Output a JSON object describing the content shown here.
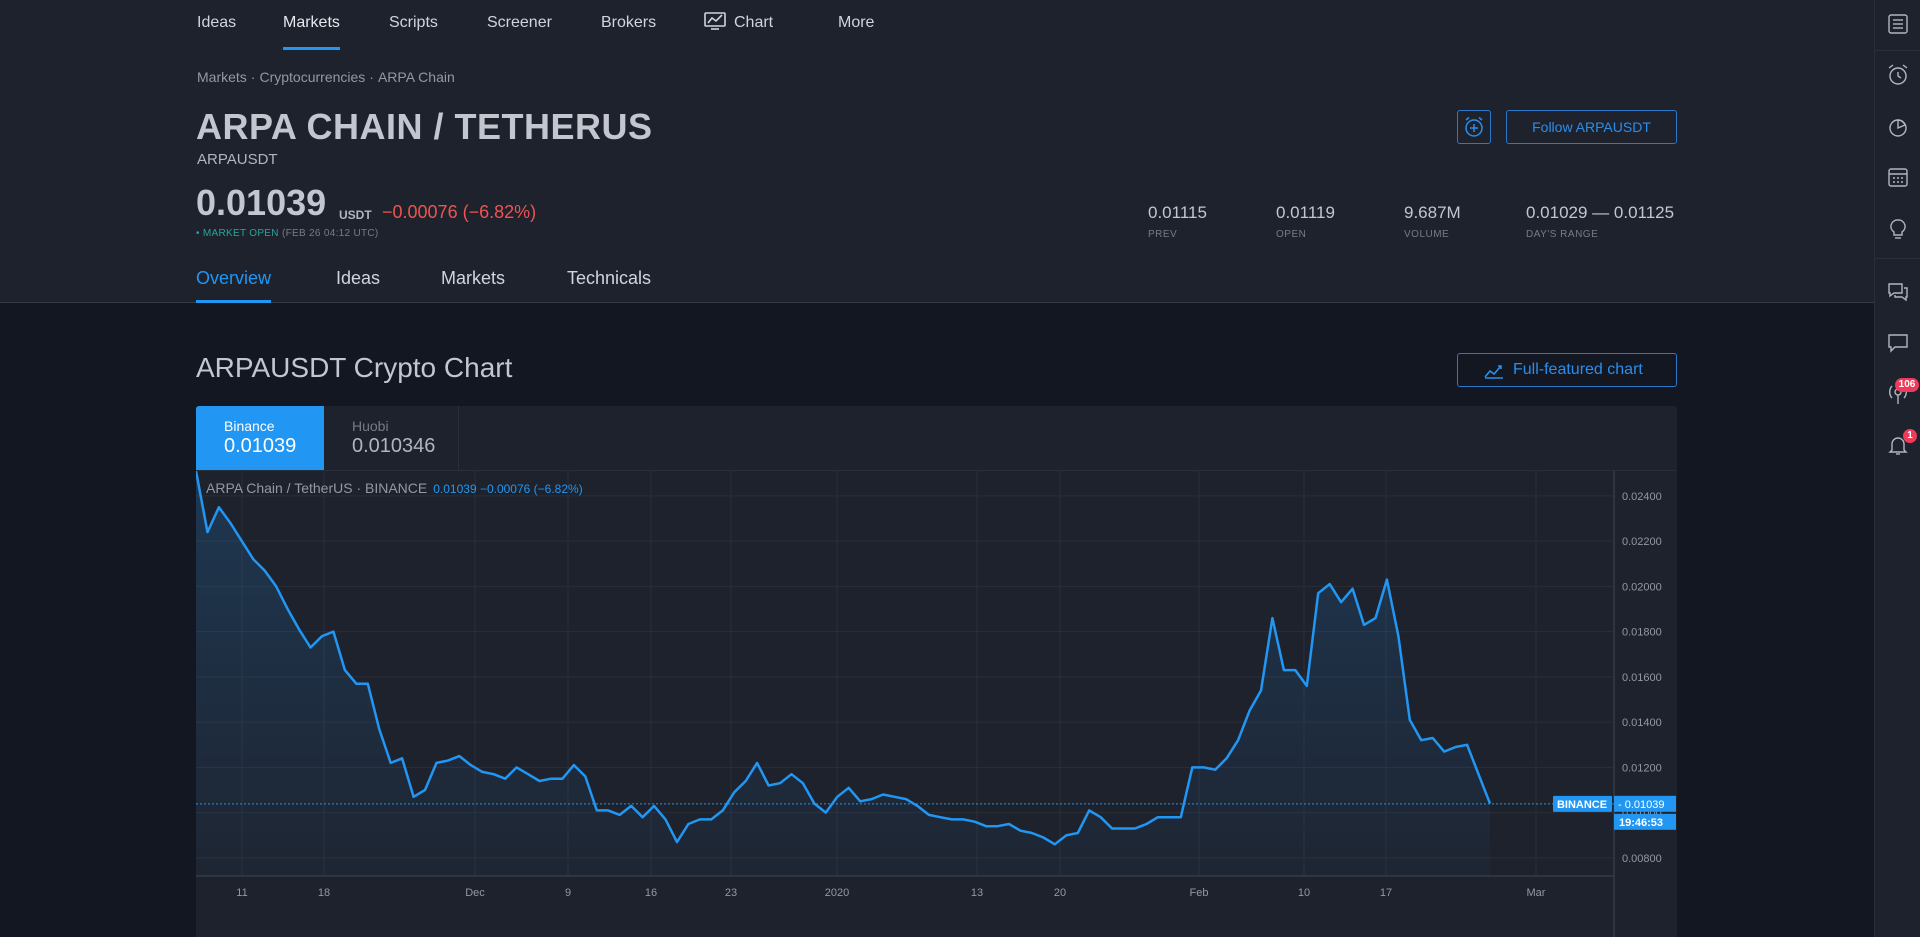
{
  "nav": {
    "items": [
      {
        "label": "Ideas"
      },
      {
        "label": "Markets"
      },
      {
        "label": "Scripts"
      },
      {
        "label": "Screener"
      },
      {
        "label": "Brokers"
      },
      {
        "label": "Chart"
      },
      {
        "label": "More"
      }
    ],
    "active": "Markets"
  },
  "breadcrumb": [
    "Markets",
    "Cryptocurrencies",
    "ARPA Chain"
  ],
  "breadcrumb_sep": "·",
  "header": {
    "title": "ARPA CHAIN / TETHERUS",
    "symbol": "ARPAUSDT",
    "price": "0.01039",
    "price_unit": "USDT",
    "change": "−0.00076 (−6.82%)",
    "market_status": "• MARKET OPEN",
    "market_time": "(FEB 26 04:12 UTC)",
    "follow_label": "Follow ARPAUSDT",
    "stats": [
      {
        "value": "0.01115",
        "label": "PREV"
      },
      {
        "value": "0.01119",
        "label": "OPEN"
      },
      {
        "value": "9.687M",
        "label": "VOLUME"
      },
      {
        "value": "0.01029 — 0.01125",
        "label": "DAY'S RANGE"
      }
    ]
  },
  "tabs": [
    "Overview",
    "Ideas",
    "Markets",
    "Technicals"
  ],
  "active_tab": "Overview",
  "right_bar": {
    "icons": [
      "watchlist-icon",
      "alert-clock-icon",
      "hotlist-icon",
      "calendar-icon",
      "ideas-bulb-icon",
      "chats-icon",
      "private-chat-icon",
      "streams-icon",
      "notifications-bell-icon"
    ],
    "streams_badge": "106",
    "notifications_badge": "1"
  },
  "chart_section": {
    "title": "ARPAUSDT Crypto Chart",
    "full_chart_label": "Full-featured chart",
    "exchanges": [
      {
        "name": "Binance",
        "price": "0.01039"
      },
      {
        "name": "Huobi",
        "price": "0.010346"
      }
    ],
    "legend_name": "ARPA Chain / TetherUS · BINANCE",
    "legend_values": "0.01039  −0.00076 (−6.82%)",
    "price_tag_label": "BINANCE",
    "price_tag_value": "0.01039",
    "countdown": "19:46:53"
  },
  "chart_data": {
    "type": "area",
    "ylim": [
      0.0072,
      0.0251
    ],
    "ytick_labels": [
      "0.02400",
      "0.02200",
      "0.02000",
      "0.01800",
      "0.01600",
      "0.01400",
      "0.01200",
      "0.01000",
      "0.00800"
    ],
    "xtick_labels": [
      "11",
      "18",
      "Dec",
      "9",
      "16",
      "23",
      "2020",
      "13",
      "20",
      "Feb",
      "10",
      "17",
      "Mar"
    ],
    "current_value": 0.01039,
    "line_color": "#2196f3",
    "series": [
      {
        "values": [
          0.0251,
          0.0224,
          0.0235,
          0.0228,
          0.022,
          0.0212,
          0.0207,
          0.02,
          0.019,
          0.0181,
          0.0173,
          0.0178,
          0.018,
          0.0163,
          0.0157,
          0.0157,
          0.0137,
          0.0122,
          0.0124,
          0.0107,
          0.011,
          0.0122,
          0.0123,
          0.0125,
          0.0121,
          0.0118,
          0.0117,
          0.0115,
          0.012,
          0.0117,
          0.0114,
          0.0115,
          0.0115,
          0.0121,
          0.0116,
          0.0101,
          0.0101,
          0.0099,
          0.0103,
          0.0098,
          0.0103,
          0.0097,
          0.0087,
          0.0095,
          0.0097,
          0.0097,
          0.0101,
          0.0109,
          0.0114,
          0.0122,
          0.0112,
          0.0113,
          0.0117,
          0.0113,
          0.0104,
          0.01,
          0.0107,
          0.0111,
          0.0105,
          0.0106,
          0.0108,
          0.0107,
          0.0106,
          0.0103,
          0.0099,
          0.0098,
          0.0097,
          0.0097,
          0.0096,
          0.0094,
          0.0094,
          0.0095,
          0.0092,
          0.0091,
          0.0089,
          0.0086,
          0.009,
          0.0091,
          0.0101,
          0.0098,
          0.0093,
          0.0093,
          0.0093,
          0.0095,
          0.0098,
          0.0098,
          0.0098,
          0.012,
          0.012,
          0.0119,
          0.0124,
          0.0132,
          0.0145,
          0.0154,
          0.0186,
          0.0163,
          0.0163,
          0.0156,
          0.0197,
          0.0201,
          0.0193,
          0.0199,
          0.0183,
          0.0186,
          0.0203,
          0.0178,
          0.0141,
          0.0132,
          0.0133,
          0.0127,
          0.0129,
          0.013,
          0.0117,
          0.0104
        ]
      }
    ]
  }
}
